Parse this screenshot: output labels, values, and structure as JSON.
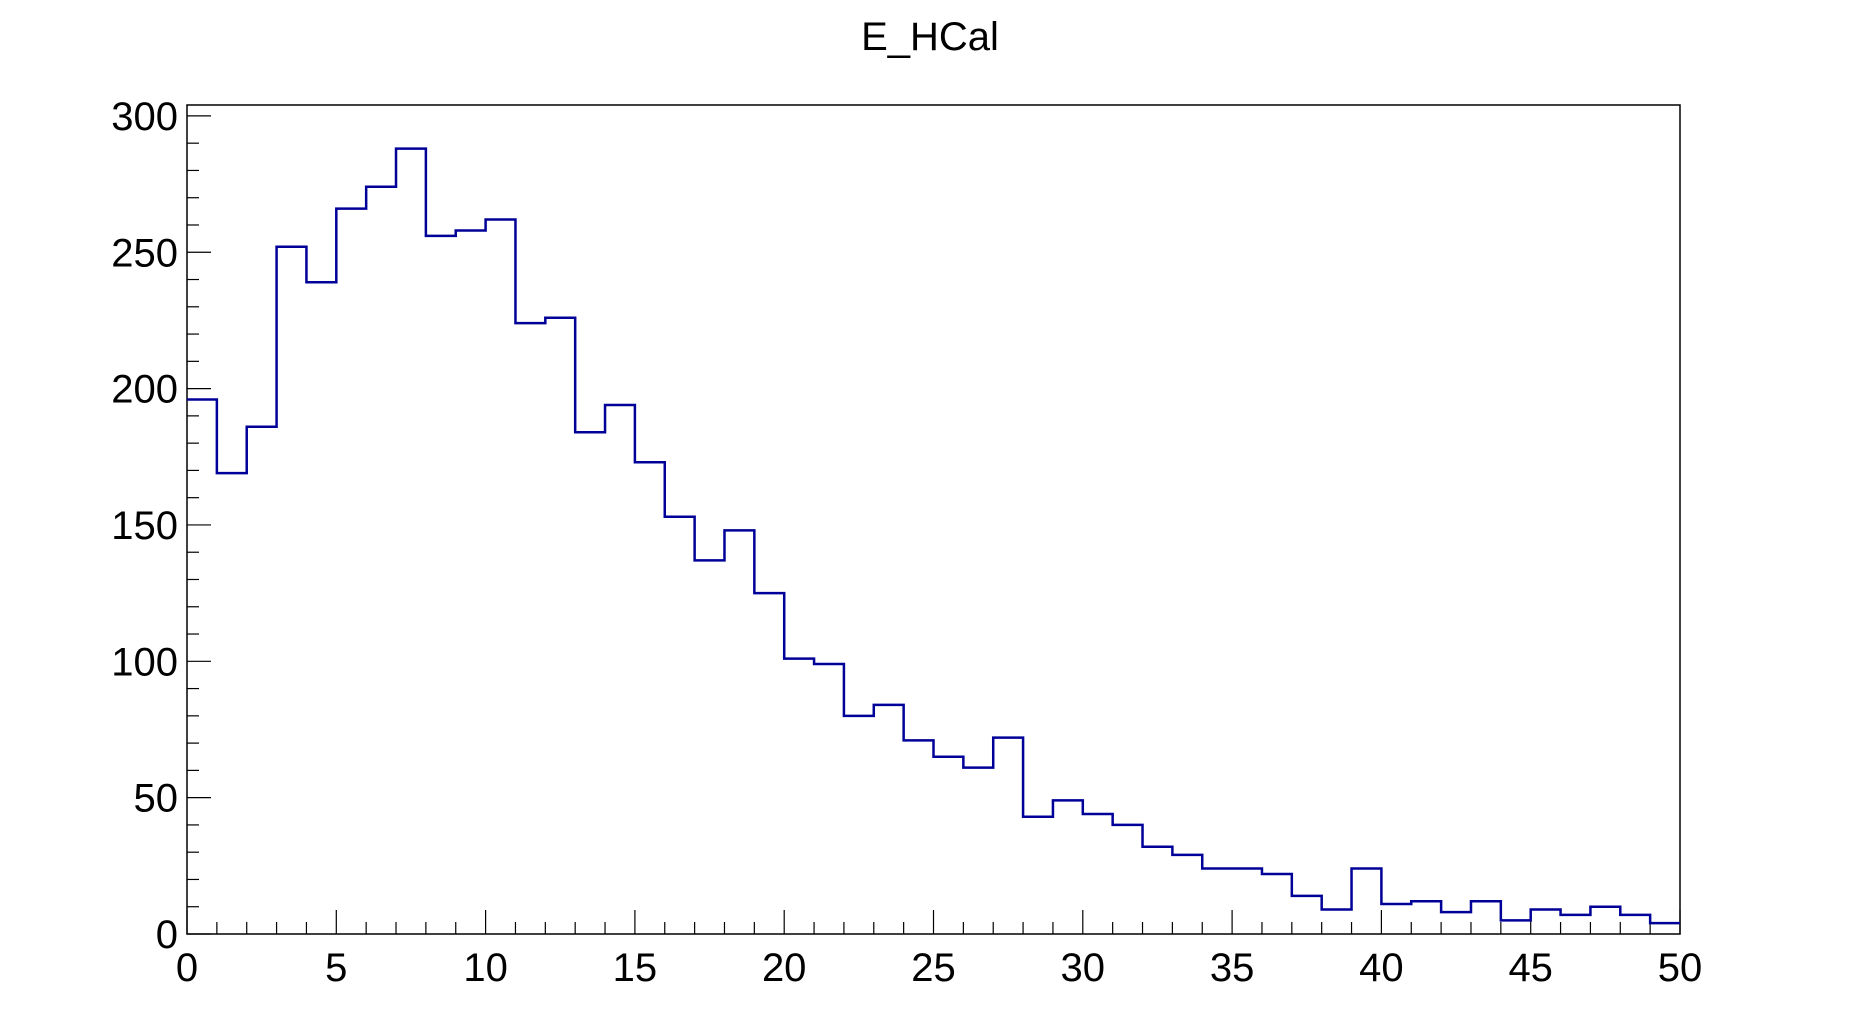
{
  "chart_data": {
    "type": "bar",
    "title": "E_HCal",
    "xlabel": "",
    "ylabel": "",
    "xlim": [
      0,
      50
    ],
    "ylim": [
      0,
      304
    ],
    "bin_width": 1,
    "x_ticks": [
      0,
      5,
      10,
      15,
      20,
      25,
      30,
      35,
      40,
      45,
      50
    ],
    "y_ticks": [
      0,
      50,
      100,
      150,
      200,
      250,
      300
    ],
    "grid": false,
    "legend": "none",
    "line_color": "#000099",
    "series": [
      {
        "values": [
          196,
          169,
          186,
          252,
          239,
          266,
          274,
          288,
          256,
          258,
          262,
          224,
          226,
          184,
          194,
          173,
          153,
          137,
          148,
          125,
          101,
          99,
          80,
          84,
          71,
          65,
          61,
          72,
          43,
          49,
          44,
          40,
          32,
          29,
          24,
          24,
          22,
          14,
          9,
          24,
          11,
          12,
          8,
          12,
          5,
          9,
          7,
          10,
          7,
          4
        ]
      }
    ]
  }
}
